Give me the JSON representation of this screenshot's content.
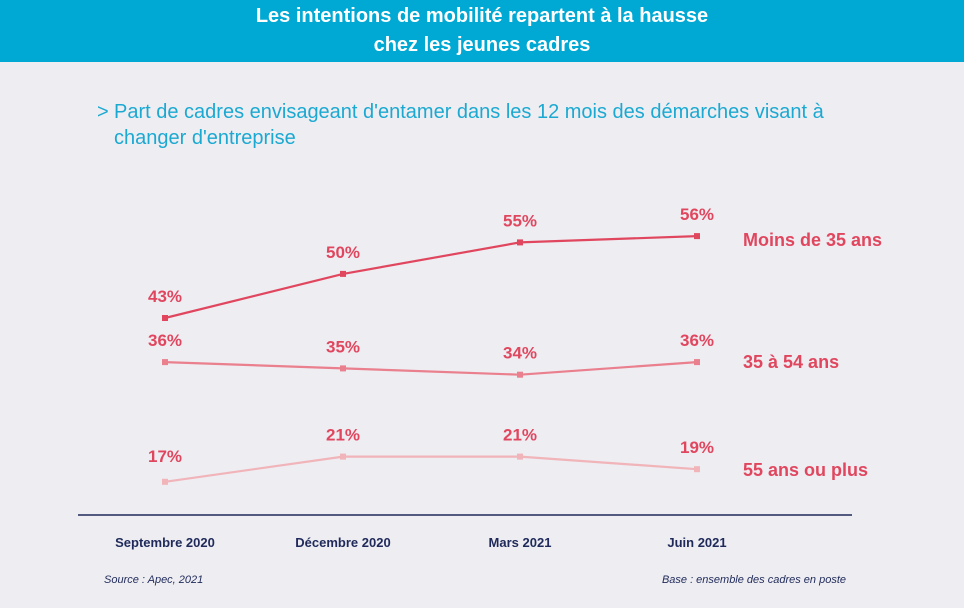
{
  "header": {
    "title_line1": "Les intentions de mobilité repartent à la hausse",
    "title_line2": "chez les jeunes cadres"
  },
  "subtitle": {
    "chevron": ">",
    "text": "Part de cadres envisageant d'entamer dans les 12 mois des démarches visant à changer d'entreprise"
  },
  "chart_data": {
    "type": "line",
    "x": [
      "Septembre 2020",
      "Décembre 2020",
      "Mars 2021",
      "Juin 2021"
    ],
    "ylim": [
      0,
      100
    ],
    "series": [
      {
        "name": "Moins de 35 ans",
        "values": [
          43,
          50,
          55,
          56
        ],
        "labels": [
          "43%",
          "50%",
          "55%",
          "56%"
        ],
        "color": "#e0475f"
      },
      {
        "name": "35 à 54 ans",
        "values": [
          36,
          35,
          34,
          36
        ],
        "labels": [
          "36%",
          "35%",
          "34%",
          "36%"
        ],
        "color": "#ea7f8d"
      },
      {
        "name": "55 ans ou plus",
        "values": [
          17,
          21,
          21,
          19
        ],
        "labels": [
          "17%",
          "21%",
          "21%",
          "19%"
        ],
        "color": "#f0b4b9"
      }
    ],
    "label_color": "#e0475f",
    "axis_color": "#1f2a5a"
  },
  "footer": {
    "source": "Source : Apec, 2021",
    "base": "Base : ensemble des cadres en poste"
  }
}
